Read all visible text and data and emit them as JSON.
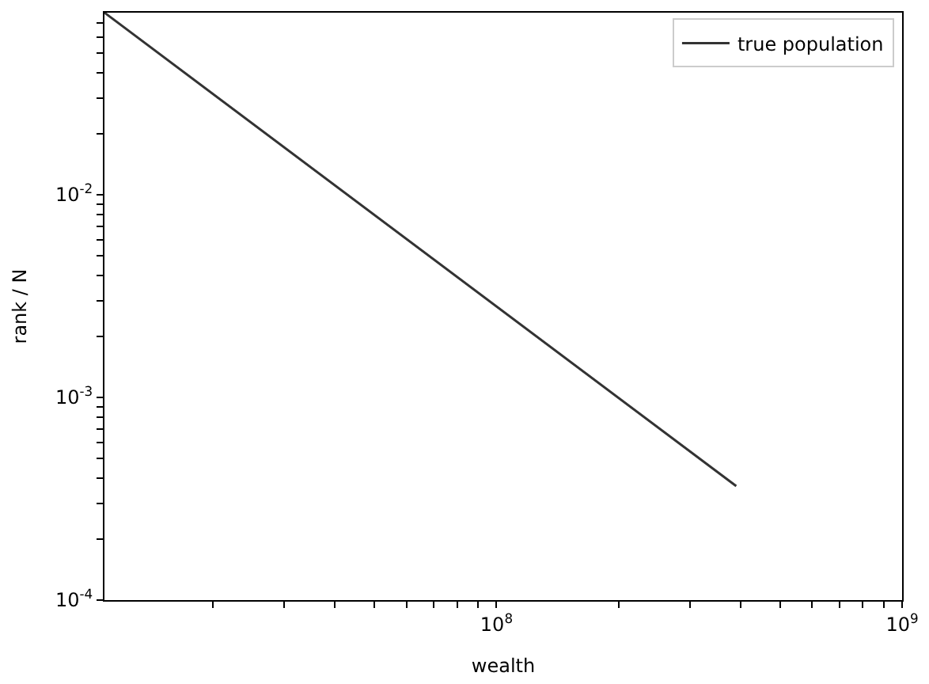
{
  "chart_data": {
    "type": "line",
    "xlabel": "wealth",
    "ylabel": "rank / N",
    "log": "xy",
    "legend": "top right",
    "marker": "none",
    "line_style": "solid",
    "xlim": [
      10800000.0,
      1000000000.0
    ],
    "ylim": [
      0.0001,
      0.079
    ],
    "xticks": [
      {
        "value": 20000000.0,
        "label": null
      },
      {
        "value": 30000000.0,
        "label": null
      },
      {
        "value": 40000000.0,
        "label": null
      },
      {
        "value": 50000000.0,
        "label": null
      },
      {
        "value": 60000000.0,
        "label": null
      },
      {
        "value": 70000000.0,
        "label": null
      },
      {
        "value": 80000000.0,
        "label": null
      },
      {
        "value": 90000000.0,
        "label": null
      },
      {
        "value": 100000000.0,
        "label": "10$^{8}$"
      },
      {
        "value": 200000000.0,
        "label": null
      },
      {
        "value": 300000000.0,
        "label": null
      },
      {
        "value": 400000000.0,
        "label": null
      },
      {
        "value": 500000000.0,
        "label": null
      },
      {
        "value": 600000000.0,
        "label": null
      },
      {
        "value": 700000000.0,
        "label": null
      },
      {
        "value": 800000000.0,
        "label": null
      },
      {
        "value": 900000000.0,
        "label": null
      },
      {
        "value": 1000000000.0,
        "label": "10$^{9}$"
      }
    ],
    "yticks": [
      {
        "value": 0.0001,
        "label": "10$^{-4}$"
      },
      {
        "value": 0.0002,
        "label": null
      },
      {
        "value": 0.0003,
        "label": null
      },
      {
        "value": 0.0004,
        "label": null
      },
      {
        "value": 0.0005,
        "label": null
      },
      {
        "value": 0.0006,
        "label": null
      },
      {
        "value": 0.0007,
        "label": null
      },
      {
        "value": 0.0008,
        "label": null
      },
      {
        "value": 0.0009,
        "label": null
      },
      {
        "value": 0.001,
        "label": "10$^{-3}$"
      },
      {
        "value": 0.002,
        "label": null
      },
      {
        "value": 0.003,
        "label": null
      },
      {
        "value": 0.004,
        "label": null
      },
      {
        "value": 0.005,
        "label": null
      },
      {
        "value": 0.006,
        "label": null
      },
      {
        "value": 0.007,
        "label": null
      },
      {
        "value": 0.008,
        "label": null
      },
      {
        "value": 0.009,
        "label": null
      },
      {
        "value": 0.01,
        "label": "10$^{-2}$"
      },
      {
        "value": 0.02,
        "label": null
      },
      {
        "value": 0.03,
        "label": null
      },
      {
        "value": 0.04,
        "label": null
      },
      {
        "value": 0.05,
        "label": null
      },
      {
        "value": 0.06,
        "label": null
      },
      {
        "value": 0.07,
        "label": null
      }
    ],
    "series": [
      {
        "name": "true population",
        "color": "#333333",
        "x": [
          10800000.0,
          390000000.0
        ],
        "values": [
          0.079,
          0.000365
        ]
      }
    ]
  }
}
